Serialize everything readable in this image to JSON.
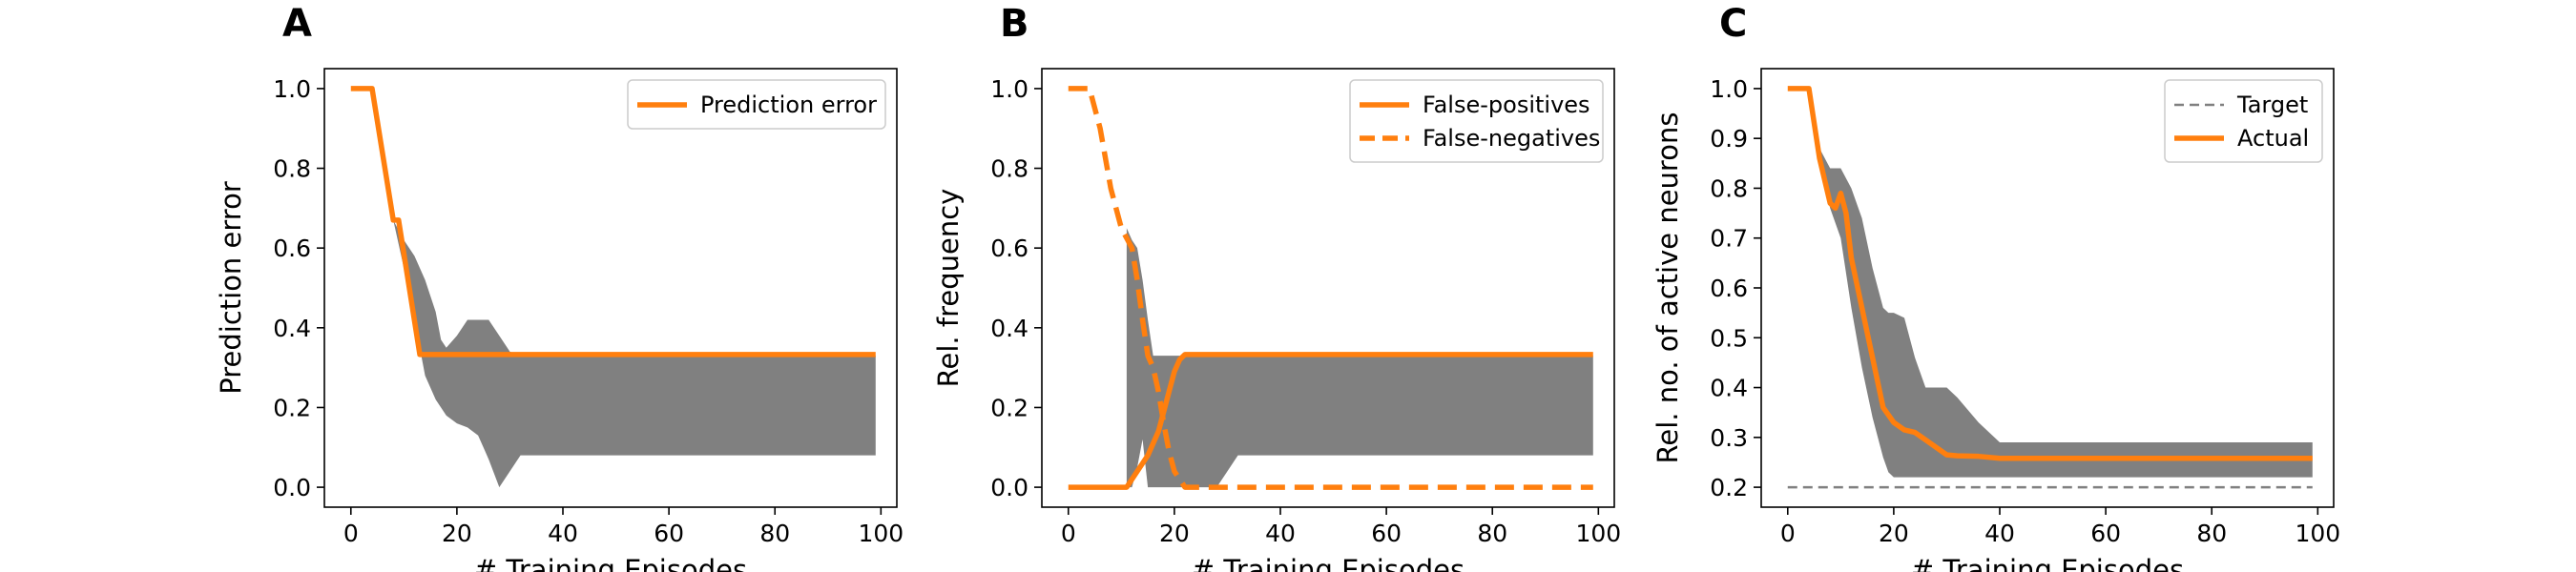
{
  "chart_data": [
    {
      "type": "line",
      "panel_label": "A",
      "xlabel": "# Training Episodes",
      "ylabel": "Prediction error",
      "xlim": [
        -5,
        103
      ],
      "ylim": [
        -0.05,
        1.05
      ],
      "xticks": [
        0,
        20,
        40,
        60,
        80,
        100
      ],
      "yticks": [
        0.0,
        0.2,
        0.4,
        0.6,
        0.8,
        1.0
      ],
      "ytick_decimals": 1,
      "grid": false,
      "legend_placement": "top-right",
      "bands": [
        {
          "x": [
            8,
            10,
            12,
            14,
            16,
            17,
            18,
            20,
            22,
            24,
            26,
            28,
            30,
            32,
            40,
            60,
            80,
            99
          ],
          "upper": [
            0.67,
            0.62,
            0.58,
            0.52,
            0.44,
            0.37,
            0.35,
            0.38,
            0.42,
            0.42,
            0.42,
            0.38,
            0.34,
            0.33,
            0.33,
            0.33,
            0.33,
            0.33
          ],
          "lower": [
            0.67,
            0.55,
            0.42,
            0.28,
            0.22,
            0.2,
            0.18,
            0.16,
            0.15,
            0.13,
            0.07,
            0.0,
            0.04,
            0.08,
            0.08,
            0.08,
            0.08,
            0.08
          ]
        }
      ],
      "series": [
        {
          "name": "Prediction error",
          "style": "solid",
          "color": "#ff7f0e",
          "x": [
            0,
            4,
            8,
            9,
            13,
            20,
            40,
            60,
            80,
            99
          ],
          "y": [
            1.0,
            1.0,
            0.67,
            0.67,
            0.333,
            0.333,
            0.333,
            0.333,
            0.333,
            0.333
          ]
        }
      ]
    },
    {
      "type": "line",
      "panel_label": "B",
      "xlabel": "# Training Episodes",
      "ylabel": "Rel. frequency",
      "xlim": [
        -5,
        103
      ],
      "ylim": [
        -0.05,
        1.05
      ],
      "xticks": [
        0,
        20,
        40,
        60,
        80,
        100
      ],
      "yticks": [
        0.0,
        0.2,
        0.4,
        0.6,
        0.8,
        1.0
      ],
      "ytick_decimals": 1,
      "grid": false,
      "legend_placement": "top-right",
      "bands": [
        {
          "x": [
            11,
            12,
            13,
            14,
            15,
            16,
            18,
            20,
            22,
            24,
            26,
            28,
            30,
            32,
            40,
            60,
            80,
            99
          ],
          "upper": [
            0.65,
            0.62,
            0.6,
            0.52,
            0.42,
            0.33,
            0.33,
            0.33,
            0.33,
            0.33,
            0.33,
            0.33,
            0.33,
            0.33,
            0.33,
            0.33,
            0.33,
            0.33
          ],
          "lower": [
            0.0,
            0.0,
            0.05,
            0.12,
            0.0,
            0.0,
            0.0,
            0.0,
            0.0,
            0.0,
            0.0,
            0.0,
            0.04,
            0.08,
            0.08,
            0.08,
            0.08,
            0.08
          ]
        }
      ],
      "series": [
        {
          "name": "False-positives",
          "style": "solid",
          "color": "#ff7f0e",
          "x": [
            0,
            10,
            11,
            13,
            15,
            17,
            19,
            20,
            21,
            22,
            23,
            30,
            40,
            60,
            80,
            99
          ],
          "y": [
            0.0,
            0.0,
            0.0,
            0.04,
            0.08,
            0.14,
            0.24,
            0.29,
            0.32,
            0.333,
            0.333,
            0.333,
            0.333,
            0.333,
            0.333,
            0.333
          ]
        },
        {
          "name": "False-negatives",
          "style": "dashed",
          "color": "#ff7f0e",
          "x": [
            0,
            4,
            6,
            8,
            10,
            12,
            13,
            14,
            15,
            16,
            17,
            18,
            19,
            20,
            22,
            23,
            30,
            40,
            60,
            80,
            99
          ],
          "y": [
            1.0,
            1.0,
            0.9,
            0.75,
            0.65,
            0.6,
            0.52,
            0.42,
            0.33,
            0.3,
            0.24,
            0.16,
            0.09,
            0.04,
            0.0,
            0.0,
            0.0,
            0.0,
            0.0,
            0.0,
            0.0
          ]
        }
      ]
    },
    {
      "type": "line",
      "panel_label": "C",
      "xlabel": "# Training Episodes",
      "ylabel": "Rel. no. of active neurons",
      "xlim": [
        -5,
        103
      ],
      "ylim": [
        0.16,
        1.04
      ],
      "xticks": [
        0,
        20,
        40,
        60,
        80,
        100
      ],
      "yticks": [
        0.2,
        0.3,
        0.4,
        0.5,
        0.6,
        0.7,
        0.8,
        0.9,
        1.0
      ],
      "ytick_decimals": 1,
      "grid": false,
      "legend_placement": "top-right",
      "bands": [
        {
          "x": [
            4,
            6,
            8,
            10,
            12,
            14,
            16,
            18,
            19,
            20,
            22,
            24,
            26,
            28,
            30,
            32,
            36,
            40,
            60,
            80,
            99
          ],
          "upper": [
            1.0,
            0.88,
            0.84,
            0.84,
            0.8,
            0.74,
            0.64,
            0.56,
            0.55,
            0.55,
            0.54,
            0.46,
            0.4,
            0.4,
            0.4,
            0.38,
            0.33,
            0.29,
            0.29,
            0.29,
            0.29
          ],
          "lower": [
            1.0,
            0.85,
            0.76,
            0.7,
            0.56,
            0.44,
            0.34,
            0.26,
            0.23,
            0.22,
            0.22,
            0.22,
            0.22,
            0.22,
            0.22,
            0.22,
            0.22,
            0.22,
            0.22,
            0.22,
            0.22
          ]
        }
      ],
      "series": [
        {
          "name": "Target",
          "style": "dashed",
          "color": "#808080",
          "x": [
            0,
            99
          ],
          "y": [
            0.2,
            0.2
          ]
        },
        {
          "name": "Actual",
          "style": "solid",
          "color": "#ff7f0e",
          "x": [
            0,
            4,
            6,
            8,
            9,
            10,
            11,
            12,
            14,
            16,
            18,
            20,
            22,
            24,
            26,
            28,
            30,
            32,
            36,
            40,
            60,
            80,
            99
          ],
          "y": [
            1.0,
            1.0,
            0.86,
            0.77,
            0.76,
            0.79,
            0.75,
            0.66,
            0.56,
            0.46,
            0.36,
            0.33,
            0.315,
            0.31,
            0.295,
            0.28,
            0.265,
            0.263,
            0.262,
            0.258,
            0.258,
            0.258,
            0.258
          ]
        }
      ]
    }
  ]
}
